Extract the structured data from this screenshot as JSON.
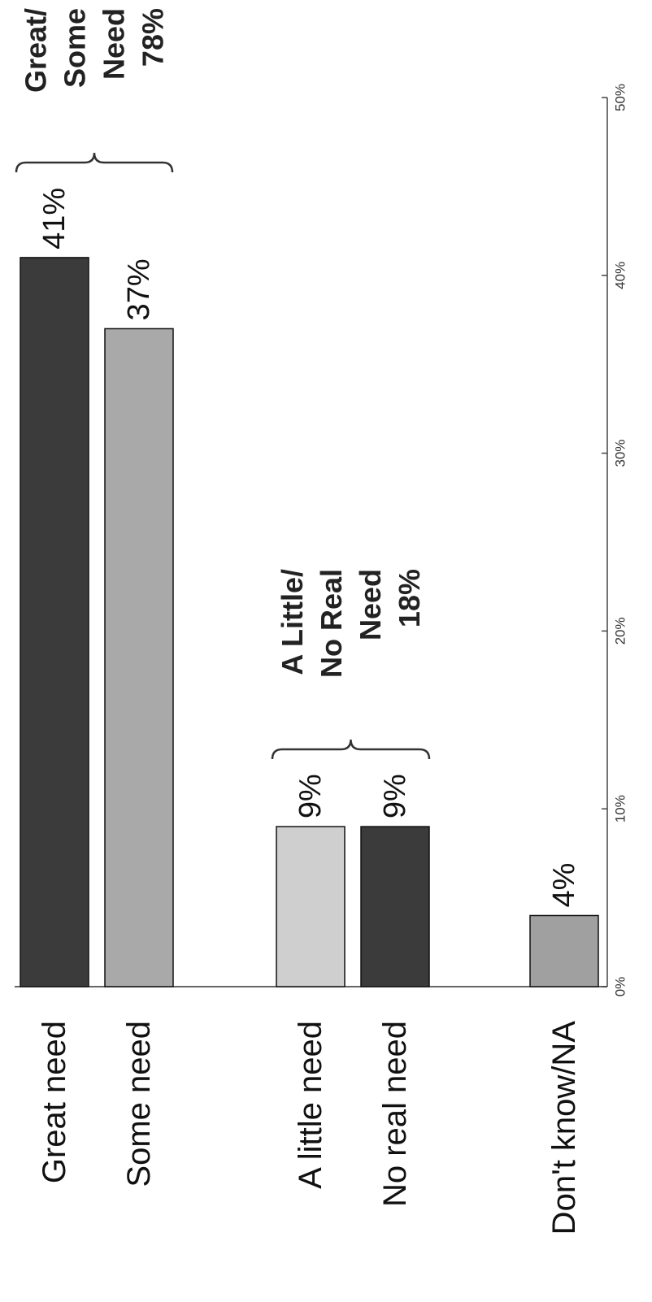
{
  "chart_data": {
    "type": "bar",
    "orientation": "horizontal",
    "categories": [
      "Great need",
      "Some need",
      "A little need",
      "No real need",
      "Don't know/NA"
    ],
    "values": [
      41,
      37,
      9,
      9,
      4
    ],
    "value_labels": [
      "41%",
      "37%",
      "9%",
      "9%",
      "4%"
    ],
    "colors": [
      "#3b3b3b",
      "#a9a9a9",
      "#cfcfcf",
      "#3b3b3b",
      "#a0a0a0"
    ],
    "xlim": [
      0,
      50
    ],
    "ticks": [
      0,
      10,
      20,
      30,
      40,
      50
    ],
    "tick_labels": [
      "0%",
      "10%",
      "20%",
      "30%",
      "40%",
      "50%"
    ],
    "grid": false,
    "groups": [
      {
        "label_lines": [
          "Great/",
          "Some",
          "Need",
          "78%"
        ],
        "value": 78,
        "members": [
          "Great need",
          "Some need"
        ]
      },
      {
        "label_lines": [
          "A Little/",
          "No Real",
          "Need",
          "18%"
        ],
        "value": 18,
        "members": [
          "A little need",
          "No real need"
        ]
      }
    ]
  }
}
